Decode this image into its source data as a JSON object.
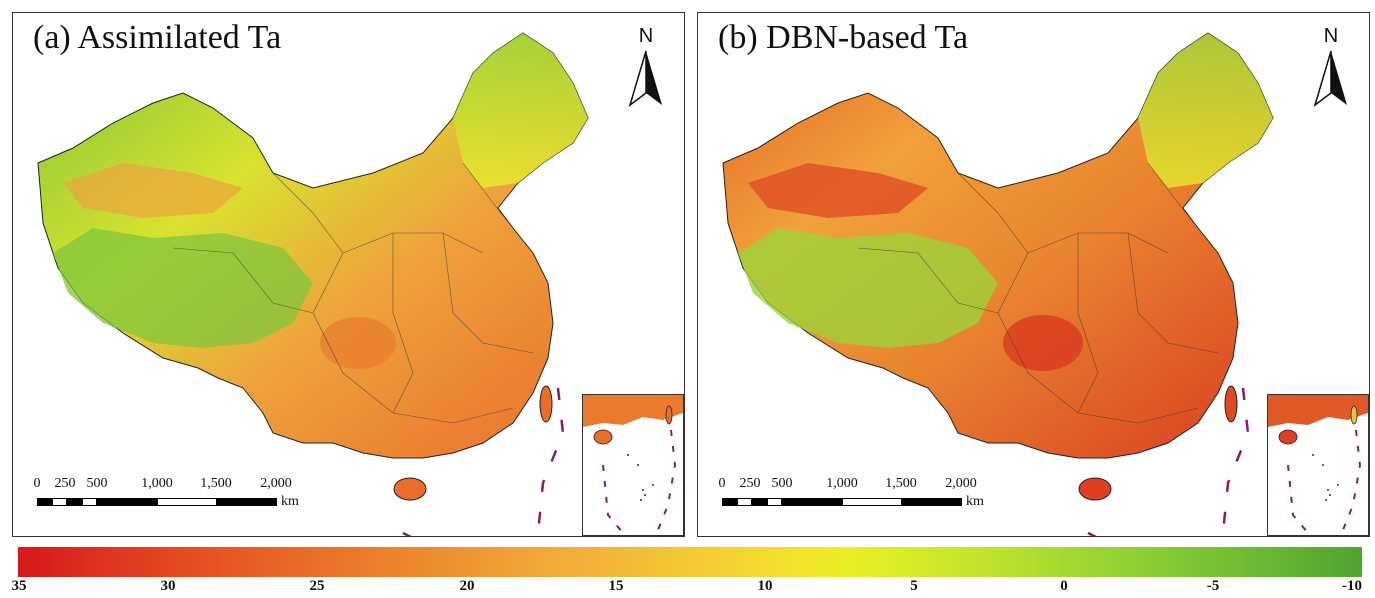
{
  "panels": [
    {
      "title": "(a) Assimilated Ta",
      "north": "N"
    },
    {
      "title": "(b) DBN-based Ta",
      "north": "N"
    }
  ],
  "scalebar": {
    "ticks": [
      "0",
      "250",
      "500",
      "1,000",
      "1,500",
      "2,000"
    ],
    "unit": "km"
  },
  "colorbar": {
    "labels": [
      "35",
      "30",
      "25",
      "20",
      "15",
      "10",
      "5",
      "0",
      "-5",
      "-10"
    ],
    "colors": [
      "#d7191c",
      "#ec8a2d",
      "#f4e12c",
      "#86cc35",
      "#4fa32f"
    ]
  }
}
